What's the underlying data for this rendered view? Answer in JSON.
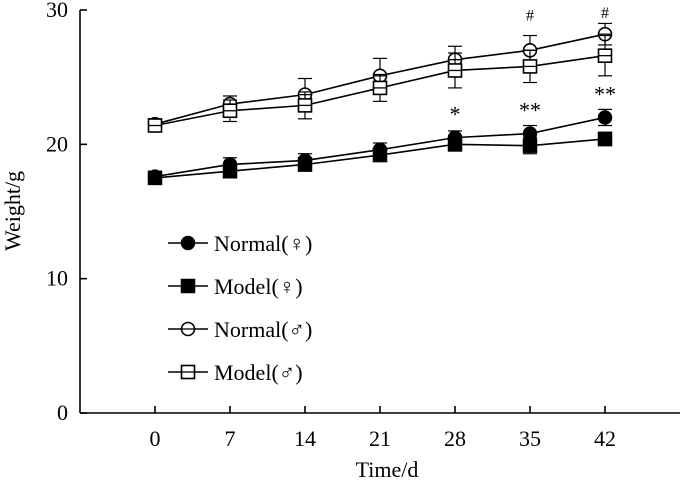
{
  "chart_data": {
    "type": "line",
    "title": "",
    "xlabel": "Time/d",
    "ylabel": "Weight/g",
    "x": [
      0,
      7,
      14,
      21,
      28,
      35,
      42
    ],
    "xlim": [
      -7,
      49
    ],
    "ylim": [
      0,
      30
    ],
    "xticks": [
      "0",
      "7",
      "14",
      "21",
      "28",
      "35",
      "42"
    ],
    "yticks": [
      "0",
      "10",
      "20",
      "30"
    ],
    "yticks_values": [
      0,
      10,
      20,
      30
    ],
    "series": [
      {
        "name": "Normal(♀)",
        "marker": "filled-circle",
        "values": [
          17.6,
          18.5,
          18.8,
          19.6,
          20.5,
          20.8,
          22.0
        ],
        "errors": [
          0.4,
          0.5,
          0.5,
          0.5,
          0.5,
          0.6,
          0.6
        ]
      },
      {
        "name": "Model(♀)",
        "marker": "filled-square",
        "values": [
          17.5,
          18.0,
          18.5,
          19.2,
          20.0,
          19.9,
          20.4
        ],
        "errors": [
          0.4,
          0.5,
          0.5,
          0.4,
          0.5,
          0.6,
          0.5
        ]
      },
      {
        "name": "Normal(♂)",
        "marker": "open-circle",
        "values": [
          21.5,
          23.0,
          23.7,
          25.1,
          26.3,
          27.0,
          28.2
        ],
        "errors": [
          0.4,
          0.6,
          1.2,
          1.3,
          1.0,
          1.1,
          0.8
        ]
      },
      {
        "name": "Model(♂)",
        "marker": "open-square",
        "values": [
          21.4,
          22.5,
          22.9,
          24.2,
          25.5,
          25.8,
          26.6
        ],
        "errors": [
          0.4,
          0.8,
          1.0,
          1.0,
          1.3,
          1.2,
          1.5
        ]
      }
    ],
    "annotations": [
      {
        "text": "*",
        "x": 28,
        "y": 21.7,
        "size": "large"
      },
      {
        "text": "**",
        "x": 35,
        "y": 22.0,
        "size": "large"
      },
      {
        "text": "**",
        "x": 42,
        "y": 23.2,
        "size": "large"
      },
      {
        "text": "#",
        "x": 35,
        "y": 29.2,
        "size": "small"
      },
      {
        "text": "#",
        "x": 42,
        "y": 29.4,
        "size": "small"
      }
    ],
    "legend_position": "center-left"
  }
}
